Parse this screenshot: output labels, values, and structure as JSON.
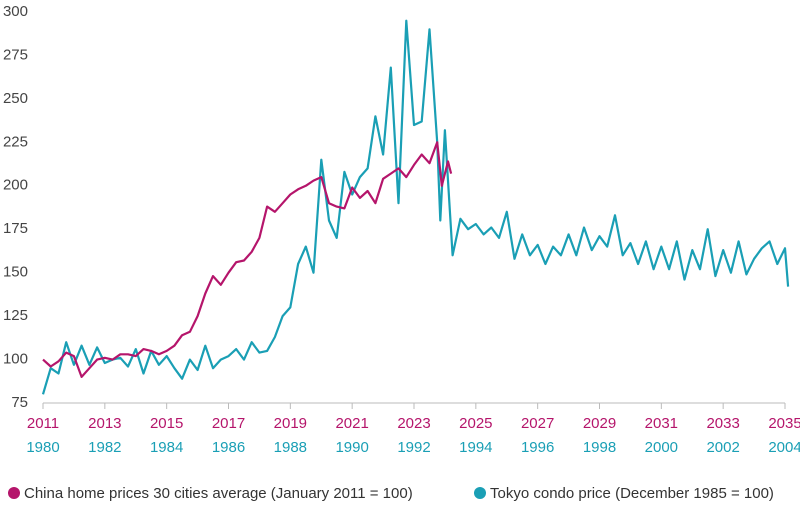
{
  "chart_data": {
    "type": "line",
    "xlim": [
      2011,
      2035
    ],
    "xticks": [
      2011,
      2013,
      2015,
      2017,
      2019,
      2021,
      2023,
      2025,
      2027,
      2029,
      2031,
      2033,
      2035
    ],
    "x2lim": [
      1980,
      2004
    ],
    "x2ticks": [
      1980,
      1982,
      1984,
      1986,
      1988,
      1990,
      1992,
      1994,
      1996,
      1998,
      2000,
      2002,
      2004
    ],
    "ylim": [
      75,
      300
    ],
    "yticks": [
      75,
      100,
      125,
      150,
      175,
      200,
      225,
      250,
      275,
      300
    ],
    "grid": false,
    "legend": "bottom",
    "series": [
      {
        "name": "China home prices 30 cities average (January 2011 = 100)",
        "color": "#b5156b",
        "axis": "x",
        "x": [
          2011,
          2011.25,
          2011.5,
          2011.75,
          2012,
          2012.25,
          2012.5,
          2012.75,
          2013,
          2013.25,
          2013.5,
          2013.75,
          2014,
          2014.25,
          2014.5,
          2014.75,
          2015,
          2015.25,
          2015.5,
          2015.75,
          2016,
          2016.25,
          2016.5,
          2016.75,
          2017,
          2017.25,
          2017.5,
          2017.75,
          2018,
          2018.25,
          2018.5,
          2018.75,
          2019,
          2019.25,
          2019.5,
          2019.75,
          2020,
          2020.25,
          2020.5,
          2020.75,
          2021,
          2021.25,
          2021.5,
          2021.75,
          2022,
          2022.25,
          2022.5,
          2022.75,
          2023,
          2023.25,
          2023.5,
          2023.75,
          2023.9,
          2024.1,
          2024.2
        ],
        "values": [
          100,
          96,
          99,
          104,
          102,
          90,
          95,
          100,
          101,
          100,
          103,
          103,
          102,
          106,
          105,
          103,
          105,
          108,
          114,
          116,
          125,
          138,
          148,
          143,
          150,
          156,
          157,
          162,
          170,
          188,
          185,
          190,
          195,
          198,
          200,
          203,
          205,
          190,
          188,
          187,
          199,
          193,
          197,
          190,
          204,
          207,
          210,
          205,
          212,
          218,
          213,
          225,
          200,
          214,
          207
        ]
      },
      {
        "name": "Tokyo condo price (December 1985 = 100)",
        "color": "#1a9fb5",
        "axis": "x2",
        "x": [
          1980,
          1980.25,
          1980.5,
          1980.75,
          1981,
          1981.25,
          1981.5,
          1981.75,
          1982,
          1982.25,
          1982.5,
          1982.75,
          1983,
          1983.25,
          1983.5,
          1983.75,
          1984,
          1984.25,
          1984.5,
          1984.75,
          1985,
          1985.25,
          1985.5,
          1985.75,
          1986,
          1986.25,
          1986.5,
          1986.75,
          1987,
          1987.25,
          1987.5,
          1987.75,
          1988,
          1988.25,
          1988.5,
          1988.75,
          1989,
          1989.25,
          1989.5,
          1989.75,
          1990,
          1990.25,
          1990.5,
          1990.75,
          1991,
          1991.25,
          1991.5,
          1991.75,
          1992,
          1992.25,
          1992.5,
          1992.75,
          1992.85,
          1993,
          1993.25,
          1993.5,
          1993.75,
          1994,
          1994.25,
          1994.5,
          1994.75,
          1995,
          1995.25,
          1995.5,
          1995.75,
          1996,
          1996.25,
          1996.5,
          1996.75,
          1997,
          1997.25,
          1997.5,
          1997.75,
          1998,
          1998.25,
          1998.5,
          1998.75,
          1999,
          1999.25,
          1999.5,
          1999.75,
          2000,
          2000.25,
          2000.5,
          2000.75,
          2001,
          2001.25,
          2001.5,
          2001.75,
          2002,
          2002.25,
          2002.5,
          2002.75,
          2003,
          2003.25,
          2003.5,
          2003.75,
          2004,
          2004.1
        ],
        "values": [
          80,
          95,
          92,
          110,
          97,
          108,
          97,
          107,
          98,
          100,
          101,
          96,
          106,
          92,
          105,
          97,
          102,
          95,
          89,
          100,
          94,
          108,
          95,
          100,
          102,
          106,
          100,
          110,
          104,
          105,
          113,
          125,
          130,
          155,
          165,
          150,
          215,
          180,
          170,
          208,
          195,
          205,
          210,
          240,
          218,
          268,
          190,
          295,
          235,
          237,
          290,
          225,
          180,
          232,
          160,
          181,
          175,
          178,
          172,
          176,
          170,
          185,
          158,
          172,
          160,
          166,
          155,
          165,
          160,
          172,
          160,
          176,
          163,
          171,
          165,
          183,
          160,
          167,
          155,
          168,
          152,
          165,
          152,
          168,
          146,
          163,
          152,
          175,
          148,
          163,
          150,
          168,
          149,
          158,
          164,
          168,
          155,
          164,
          142
        ]
      }
    ]
  }
}
